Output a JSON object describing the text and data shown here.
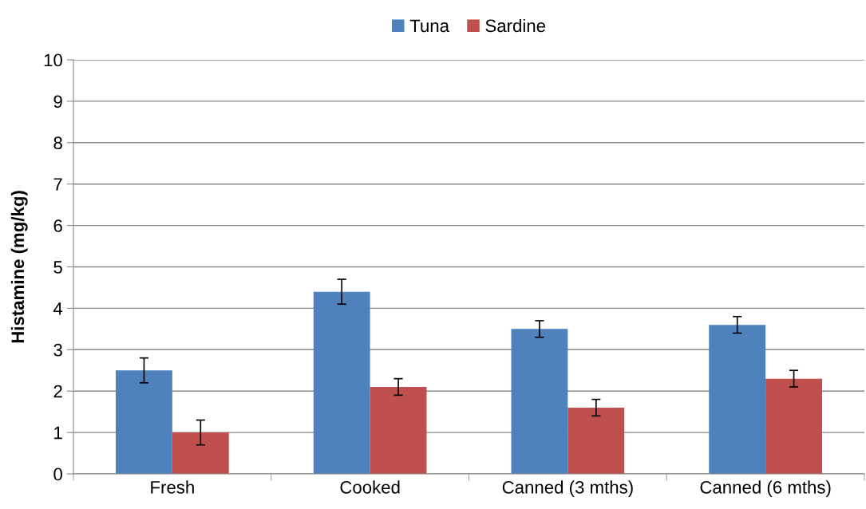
{
  "chart_data": {
    "type": "bar",
    "ylabel": "Histamine (mg/kg)",
    "categories": [
      "Fresh",
      "Cooked",
      "Canned (3 mths)",
      "Canned (6 mths)"
    ],
    "series": [
      {
        "name": "Tuna",
        "color": "#4f81bd",
        "values": [
          2.5,
          4.4,
          3.5,
          3.6
        ],
        "errors": [
          0.3,
          0.3,
          0.2,
          0.2
        ]
      },
      {
        "name": "Sardine",
        "color": "#c0504d",
        "values": [
          1.0,
          2.1,
          1.6,
          2.3
        ],
        "errors": [
          0.3,
          0.2,
          0.2,
          0.2
        ]
      }
    ],
    "ylim": [
      0,
      10
    ],
    "yticks": [
      0,
      1,
      2,
      3,
      4,
      5,
      6,
      7,
      8,
      9,
      10
    ],
    "grid": "y",
    "legend": "top"
  }
}
